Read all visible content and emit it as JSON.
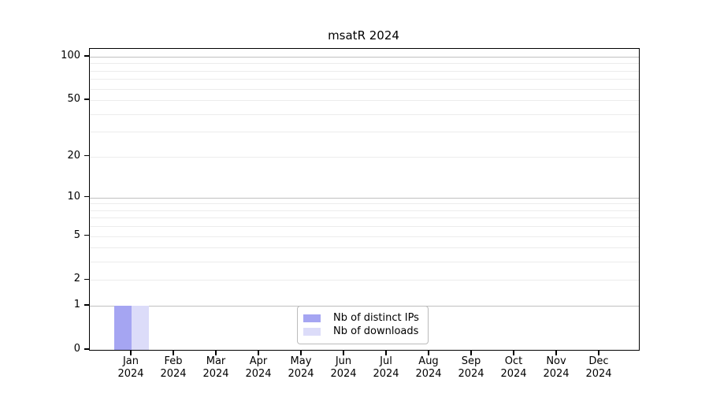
{
  "chart_data": {
    "type": "bar",
    "title": "msatR 2024",
    "months": [
      "Jan",
      "Feb",
      "Mar",
      "Apr",
      "May",
      "Jun",
      "Jul",
      "Aug",
      "Sep",
      "Oct",
      "Nov",
      "Dec"
    ],
    "year": "2024",
    "series": [
      {
        "name": "Nb of distinct IPs",
        "color": "#a5a5f2",
        "values": [
          1,
          0,
          0,
          0,
          0,
          0,
          0,
          0,
          0,
          0,
          0,
          0
        ]
      },
      {
        "name": "Nb of downloads",
        "color": "#dcdcf9",
        "values": [
          1,
          0,
          0,
          0,
          0,
          0,
          0,
          0,
          0,
          0,
          0,
          0
        ]
      }
    ],
    "y_ticks": [
      0,
      1,
      2,
      5,
      10,
      20,
      50,
      100
    ],
    "ylim": [
      0,
      100
    ],
    "scale": "log1p",
    "grid": true,
    "gridlines": {
      "major": [
        1,
        10,
        100
      ],
      "minor": [
        2,
        3,
        4,
        5,
        6,
        7,
        8,
        9,
        20,
        30,
        40,
        50,
        60,
        70,
        80,
        90
      ]
    },
    "legend_position": "bottom-center",
    "colors": {
      "axis": "#000000",
      "major_grid": "#c0c0c0",
      "minor_grid": "#ececec",
      "legend_border": "#bbbbbb"
    }
  }
}
